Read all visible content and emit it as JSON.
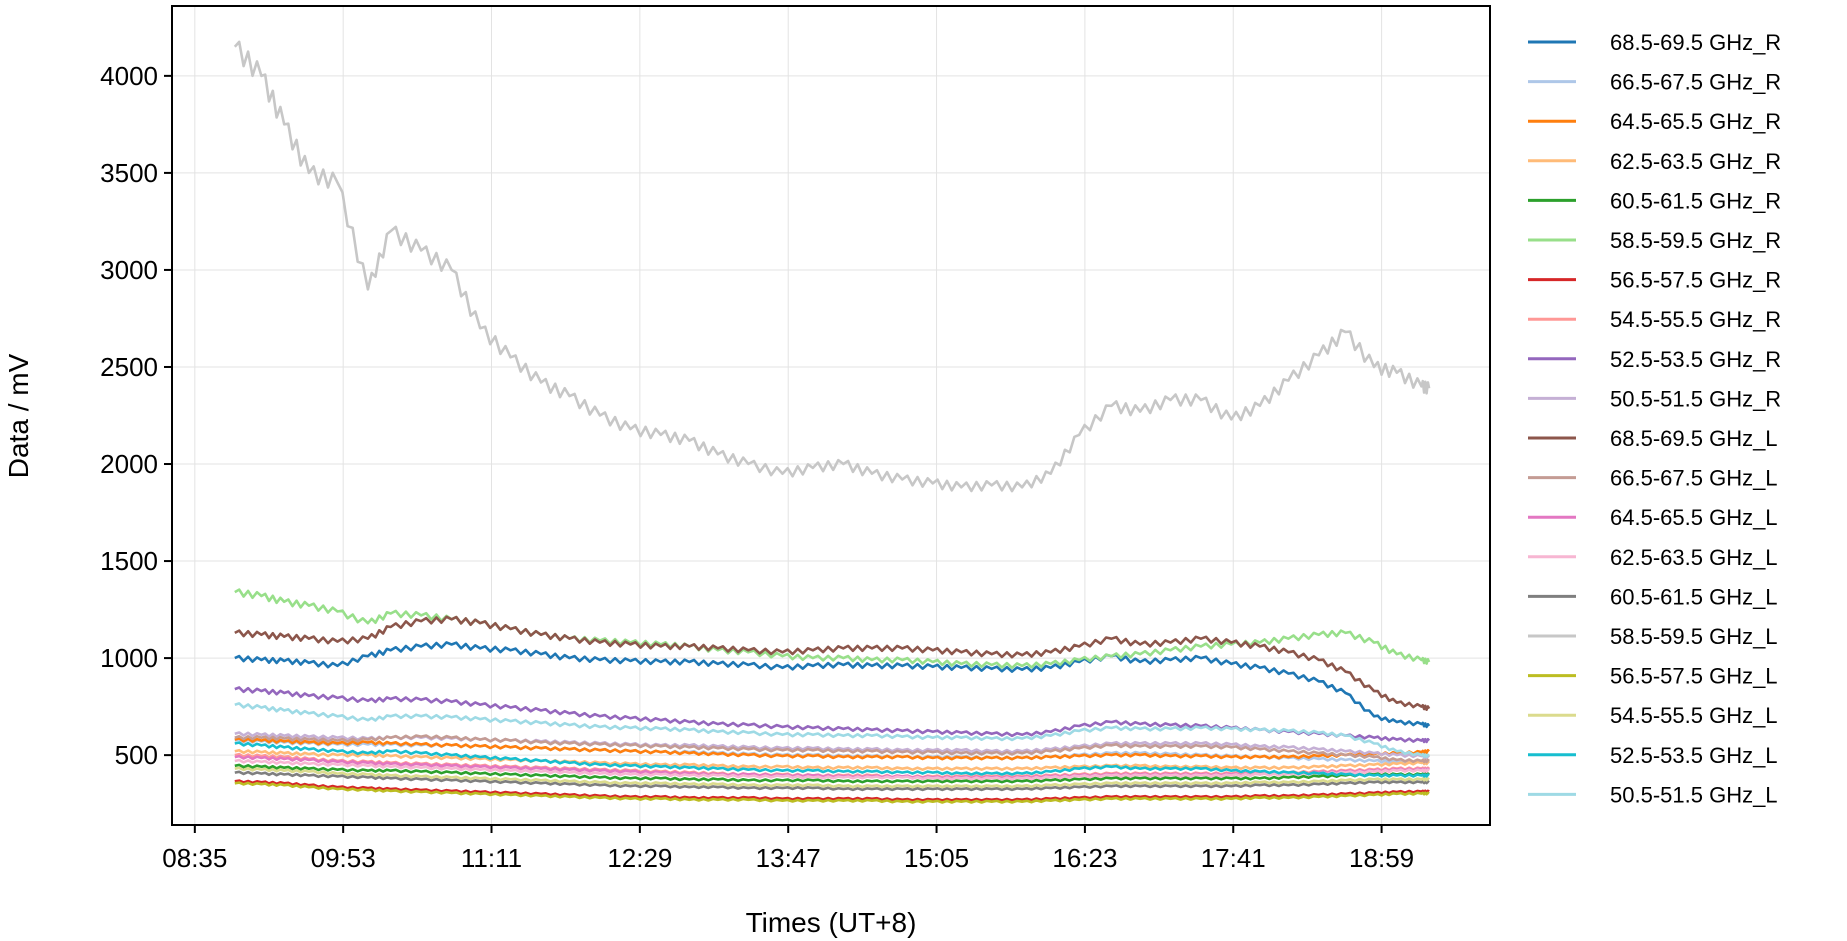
{
  "chart_data": {
    "type": "line",
    "title": "",
    "xlabel": "Times (UT+8)",
    "ylabel": "Data / mV",
    "x_ticks": [
      "08:35",
      "09:53",
      "11:11",
      "12:29",
      "13:47",
      "15:05",
      "16:23",
      "17:41",
      "18:59"
    ],
    "x_tick_minutes": [
      515,
      593,
      671,
      749,
      827,
      905,
      983,
      1061,
      1139
    ],
    "xlim_minutes": [
      503,
      1196
    ],
    "y_ticks": [
      500,
      1000,
      1500,
      2000,
      2500,
      3000,
      3500,
      4000
    ],
    "ylim": [
      140,
      4360
    ],
    "grid": true,
    "legend_position": "outside-right",
    "x": [
      "08:56",
      "09:10",
      "09:22",
      "09:35",
      "09:50",
      "10:06",
      "10:18",
      "10:34",
      "10:50",
      "11:05",
      "11:21",
      "11:37",
      "11:52",
      "12:08",
      "12:24",
      "12:40",
      "12:55",
      "13:10",
      "13:26",
      "13:44",
      "14:00",
      "14:16",
      "14:31",
      "14:47",
      "15:03",
      "15:18",
      "15:34",
      "15:50",
      "16:05",
      "16:20",
      "16:37",
      "16:52",
      "17:08",
      "17:24",
      "17:40",
      "17:55",
      "18:10",
      "18:26",
      "18:40",
      "18:55",
      "19:07",
      "19:20",
      "19:24"
    ],
    "series": [
      {
        "name": "68.5-69.5 GHz_R",
        "color": "#1f77b4",
        "values": [
          1000,
          990,
          985,
          975,
          960,
          1010,
          1040,
          1060,
          1070,
          1050,
          1040,
          1020,
          1000,
          990,
          985,
          980,
          980,
          970,
          965,
          950,
          960,
          965,
          960,
          960,
          955,
          950,
          945,
          940,
          950,
          980,
          1010,
          980,
          990,
          1000,
          970,
          950,
          920,
          880,
          820,
          700,
          670,
          660,
          650
        ]
      },
      {
        "name": "66.5-67.5 GHz_R",
        "color": "#aec7e8",
        "values": [
          575,
          570,
          565,
          560,
          555,
          555,
          555,
          550,
          550,
          545,
          540,
          535,
          530,
          525,
          520,
          515,
          515,
          510,
          505,
          500,
          500,
          495,
          495,
          490,
          490,
          490,
          485,
          485,
          490,
          500,
          510,
          510,
          505,
          500,
          495,
          490,
          485,
          480,
          475,
          470,
          465,
          460,
          460
        ]
      },
      {
        "name": "64.5-65.5 GHz_R",
        "color": "#ff7f0e",
        "values": [
          580,
          575,
          570,
          565,
          560,
          565,
          560,
          555,
          550,
          545,
          540,
          535,
          530,
          525,
          520,
          515,
          510,
          505,
          500,
          495,
          495,
          490,
          490,
          490,
          485,
          485,
          485,
          485,
          490,
          495,
          500,
          500,
          495,
          495,
          490,
          490,
          490,
          495,
          500,
          505,
          510,
          515,
          520
        ]
      },
      {
        "name": "62.5-63.5 GHz_R",
        "color": "#ffbb78",
        "values": [
          520,
          515,
          510,
          505,
          500,
          500,
          495,
          490,
          485,
          480,
          475,
          470,
          465,
          460,
          455,
          450,
          450,
          445,
          440,
          440,
          435,
          435,
          435,
          430,
          430,
          430,
          430,
          430,
          435,
          440,
          445,
          445,
          440,
          440,
          435,
          435,
          435,
          440,
          445,
          450,
          455,
          460,
          460
        ]
      },
      {
        "name": "60.5-61.5 GHz_R",
        "color": "#2ca02c",
        "values": [
          445,
          440,
          435,
          430,
          425,
          420,
          420,
          415,
          410,
          405,
          400,
          395,
          390,
          385,
          380,
          380,
          375,
          375,
          370,
          370,
          370,
          365,
          365,
          365,
          365,
          365,
          365,
          365,
          370,
          375,
          380,
          380,
          380,
          380,
          380,
          380,
          385,
          390,
          395,
          400,
          400,
          400,
          400
        ]
      },
      {
        "name": "58.5-59.5 GHz_R",
        "color": "#98df8a",
        "values": [
          1340,
          1320,
          1290,
          1270,
          1240,
          1180,
          1230,
          1220,
          1200,
          1180,
          1150,
          1120,
          1100,
          1090,
          1080,
          1070,
          1060,
          1040,
          1030,
          1010,
          1000,
          1000,
          990,
          990,
          980,
          970,
          965,
          960,
          970,
          990,
          1010,
          1020,
          1040,
          1060,
          1070,
          1080,
          1100,
          1120,
          1130,
          1080,
          1020,
          990,
          980
        ]
      },
      {
        "name": "56.5-57.5 GHz_R",
        "color": "#d62728",
        "values": [
          365,
          360,
          355,
          345,
          335,
          330,
          325,
          320,
          315,
          310,
          305,
          300,
          295,
          290,
          285,
          285,
          280,
          280,
          280,
          275,
          275,
          275,
          275,
          270,
          270,
          270,
          270,
          270,
          275,
          280,
          285,
          285,
          285,
          285,
          285,
          290,
          290,
          295,
          300,
          305,
          310,
          312,
          312
        ]
      },
      {
        "name": "54.5-55.5 GHz_R",
        "color": "#ff9896",
        "values": [
          500,
          495,
          490,
          480,
          470,
          465,
          460,
          455,
          450,
          445,
          440,
          435,
          430,
          425,
          420,
          415,
          410,
          405,
          400,
          400,
          395,
          395,
          395,
          390,
          390,
          390,
          390,
          390,
          395,
          400,
          405,
          405,
          405,
          405,
          405,
          410,
          410,
          415,
          420,
          425,
          430,
          430,
          430
        ]
      },
      {
        "name": "52.5-53.5 GHz_R",
        "color": "#9467bd",
        "values": [
          840,
          830,
          820,
          805,
          795,
          780,
          790,
          785,
          775,
          760,
          745,
          730,
          715,
          700,
          690,
          680,
          670,
          660,
          655,
          645,
          640,
          635,
          630,
          625,
          620,
          615,
          610,
          605,
          620,
          650,
          670,
          660,
          655,
          650,
          640,
          630,
          620,
          610,
          600,
          590,
          580,
          575,
          575
        ]
      },
      {
        "name": "50.5-51.5 GHz_R",
        "color": "#c5b0d5",
        "values": [
          610,
          605,
          600,
          595,
          590,
          585,
          590,
          590,
          585,
          580,
          575,
          570,
          565,
          560,
          555,
          550,
          550,
          545,
          540,
          535,
          535,
          530,
          530,
          525,
          525,
          525,
          520,
          520,
          530,
          545,
          560,
          560,
          560,
          560,
          555,
          545,
          540,
          530,
          520,
          510,
          500,
          495,
          490
        ]
      },
      {
        "name": "68.5-69.5 GHz_L",
        "color": "#8c564b",
        "values": [
          1130,
          1120,
          1110,
          1100,
          1085,
          1100,
          1160,
          1190,
          1200,
          1180,
          1150,
          1120,
          1100,
          1080,
          1070,
          1060,
          1060,
          1050,
          1040,
          1030,
          1040,
          1050,
          1050,
          1050,
          1040,
          1030,
          1020,
          1015,
          1030,
          1060,
          1100,
          1070,
          1080,
          1100,
          1080,
          1060,
          1030,
          990,
          930,
          830,
          770,
          750,
          740
        ]
      },
      {
        "name": "66.5-67.5 GHz_L",
        "color": "#c49c94",
        "values": [
          590,
          590,
          585,
          580,
          575,
          580,
          590,
          595,
          590,
          580,
          575,
          565,
          560,
          555,
          550,
          545,
          540,
          535,
          530,
          525,
          525,
          520,
          520,
          515,
          515,
          510,
          510,
          510,
          520,
          535,
          550,
          545,
          545,
          545,
          540,
          530,
          520,
          510,
          500,
          490,
          475,
          470,
          470
        ]
      },
      {
        "name": "64.5-65.5 GHz_L",
        "color": "#e377c2",
        "values": [
          490,
          485,
          480,
          475,
          465,
          460,
          455,
          450,
          445,
          440,
          435,
          430,
          425,
          420,
          415,
          410,
          405,
          400,
          400,
          395,
          395,
          390,
          390,
          390,
          385,
          385,
          385,
          385,
          390,
          395,
          400,
          400,
          400,
          400,
          400,
          400,
          405,
          410,
          415,
          420,
          425,
          425,
          425
        ]
      },
      {
        "name": "62.5-63.5 GHz_L",
        "color": "#f7b6d2",
        "values": [
          470,
          465,
          460,
          455,
          450,
          445,
          440,
          435,
          430,
          425,
          420,
          415,
          410,
          405,
          400,
          400,
          395,
          395,
          390,
          390,
          385,
          385,
          385,
          385,
          380,
          380,
          380,
          380,
          385,
          390,
          395,
          395,
          395,
          395,
          395,
          400,
          400,
          405,
          410,
          415,
          420,
          420,
          420
        ]
      },
      {
        "name": "60.5-61.5 GHz_L",
        "color": "#7f7f7f",
        "values": [
          410,
          405,
          400,
          395,
          390,
          385,
          380,
          375,
          370,
          365,
          360,
          355,
          350,
          345,
          340,
          340,
          335,
          335,
          330,
          330,
          330,
          325,
          325,
          325,
          325,
          325,
          325,
          325,
          330,
          335,
          340,
          340,
          340,
          340,
          340,
          345,
          345,
          350,
          355,
          360,
          360,
          360,
          360
        ]
      },
      {
        "name": "58.5-59.5 GHz_L",
        "color": "#c7c7c7",
        "values": [
          4150,
          4000,
          3750,
          3500,
          3450,
          2900,
          3200,
          3100,
          3000,
          2700,
          2550,
          2420,
          2350,
          2250,
          2180,
          2150,
          2120,
          2050,
          2000,
          1950,
          1980,
          2000,
          1950,
          1920,
          1900,
          1880,
          1890,
          1880,
          1950,
          2150,
          2300,
          2270,
          2330,
          2330,
          2230,
          2300,
          2430,
          2560,
          2680,
          2500,
          2470,
          2400,
          2390
        ]
      },
      {
        "name": "56.5-57.5 GHz_L",
        "color": "#bcbd22",
        "values": [
          355,
          350,
          345,
          335,
          325,
          320,
          315,
          310,
          305,
          300,
          295,
          290,
          285,
          280,
          275,
          275,
          270,
          270,
          270,
          265,
          265,
          265,
          265,
          260,
          260,
          260,
          260,
          260,
          265,
          270,
          275,
          275,
          275,
          275,
          275,
          280,
          280,
          285,
          290,
          295,
          300,
          302,
          302
        ]
      },
      {
        "name": "54.5-55.5 GHz_L",
        "color": "#dbdb8d",
        "values": [
          430,
          425,
          420,
          415,
          405,
          400,
          395,
          390,
          385,
          380,
          375,
          370,
          365,
          360,
          355,
          355,
          350,
          350,
          345,
          345,
          345,
          340,
          340,
          340,
          340,
          340,
          340,
          340,
          345,
          350,
          355,
          355,
          355,
          355,
          355,
          360,
          360,
          365,
          370,
          375,
          375,
          375,
          375
        ]
      },
      {
        "name": "52.5-53.5 GHz_L",
        "color": "#17becf",
        "values": [
          560,
          550,
          540,
          530,
          520,
          510,
          520,
          510,
          500,
          490,
          480,
          470,
          460,
          450,
          445,
          440,
          435,
          430,
          425,
          420,
          420,
          415,
          415,
          410,
          410,
          405,
          405,
          405,
          415,
          430,
          440,
          430,
          430,
          430,
          420,
          415,
          410,
          405,
          400,
          395,
          395,
          395,
          395
        ]
      },
      {
        "name": "50.5-51.5 GHz_L",
        "color": "#9edae5",
        "values": [
          760,
          745,
          730,
          715,
          700,
          680,
          700,
          700,
          695,
          685,
          675,
          665,
          655,
          645,
          640,
          635,
          630,
          620,
          615,
          605,
          605,
          600,
          600,
          595,
          590,
          590,
          585,
          585,
          600,
          625,
          640,
          635,
          635,
          640,
          635,
          630,
          625,
          615,
          600,
          560,
          520,
          500,
          495
        ]
      }
    ]
  }
}
